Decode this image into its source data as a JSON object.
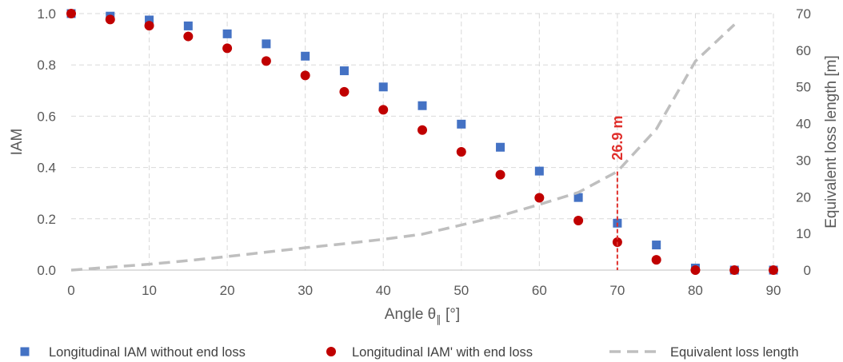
{
  "chart_data": {
    "type": "scatter",
    "x_axis": {
      "label_main": "Angle θ",
      "label_sub": "∥",
      "label_unit": "[°]",
      "range": [
        0,
        90
      ],
      "ticks": [
        0,
        10,
        20,
        30,
        40,
        50,
        60,
        70,
        80,
        90
      ]
    },
    "y_axis_left": {
      "label": "IAM",
      "range": [
        0,
        1
      ],
      "ticks": [
        "0.0",
        "0.2",
        "0.4",
        "0.6",
        "0.8",
        "1.0"
      ]
    },
    "y_axis_right": {
      "label": "Equivalent loss length [m]",
      "range": [
        0,
        70
      ],
      "ticks": [
        0,
        10,
        20,
        30,
        40,
        50,
        60,
        70
      ]
    },
    "grid": true,
    "legend_position": "bottom",
    "series": [
      {
        "name": "Longitudinal IAM without end loss",
        "type": "scatter",
        "marker": "square",
        "color": "#4472C4",
        "axis": "left",
        "x": [
          0,
          5,
          10,
          15,
          20,
          25,
          30,
          35,
          40,
          45,
          50,
          55,
          60,
          65,
          70,
          75,
          80,
          85,
          90
        ],
        "y": [
          1.0,
          0.99,
          0.975,
          0.952,
          0.921,
          0.882,
          0.834,
          0.777,
          0.714,
          0.641,
          0.569,
          0.479,
          0.386,
          0.283,
          0.183,
          0.098,
          0.008,
          0.0,
          0.0
        ]
      },
      {
        "name": "Longitudinal IAM' with end loss",
        "type": "scatter",
        "marker": "circle",
        "color": "#C00000",
        "axis": "left",
        "x": [
          0,
          5,
          10,
          15,
          20,
          25,
          30,
          35,
          40,
          45,
          50,
          55,
          60,
          65,
          70,
          75,
          80,
          85,
          90
        ],
        "y": [
          1.0,
          0.977,
          0.953,
          0.911,
          0.865,
          0.815,
          0.759,
          0.695,
          0.625,
          0.546,
          0.461,
          0.372,
          0.282,
          0.193,
          0.109,
          0.04,
          0.0,
          0.0,
          0.0
        ]
      },
      {
        "name": "Equivalent loss length",
        "type": "line",
        "style": "dashed",
        "color": "#BFBFBF",
        "axis": "right",
        "x": [
          0,
          5,
          10,
          15,
          20,
          25,
          30,
          35,
          40,
          45,
          50,
          55,
          60,
          65,
          70,
          75,
          80,
          85
        ],
        "y": [
          0.0,
          0.8,
          1.6,
          2.6,
          3.7,
          4.9,
          6.1,
          7.2,
          8.4,
          9.8,
          12.3,
          14.8,
          17.9,
          21.2,
          26.9,
          38.5,
          57.0,
          67.0
        ]
      }
    ],
    "annotation": {
      "text": "26.9 m",
      "x": 70,
      "y_right": 26.9,
      "color": "#E0302C"
    }
  }
}
